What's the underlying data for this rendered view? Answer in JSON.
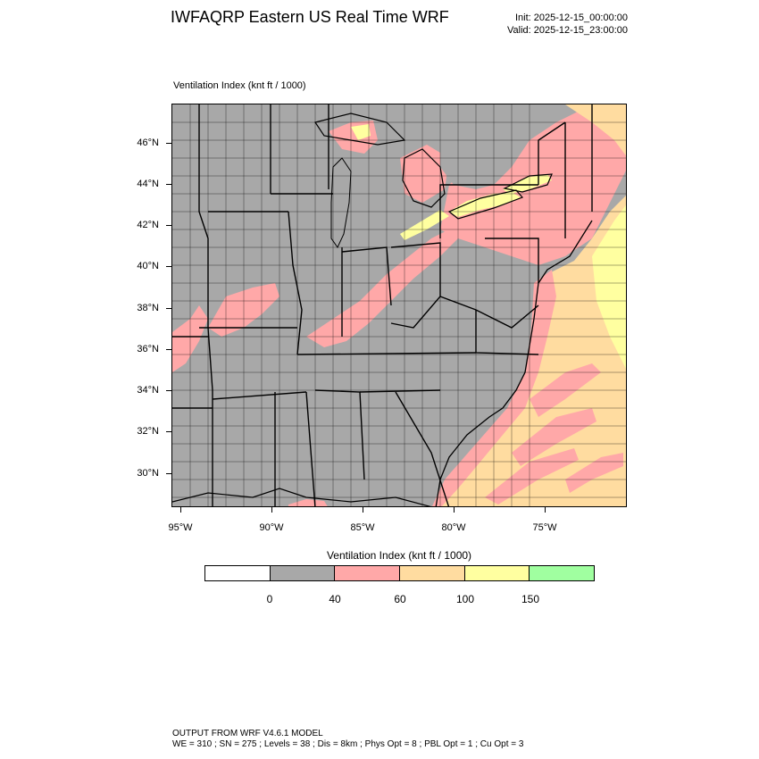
{
  "header": {
    "title": "IWFAQRP Eastern US Real Time WRF",
    "init": "Init: 2025-12-15_00:00:00",
    "valid": "Valid: 2025-12-15_23:00:00"
  },
  "plot": {
    "label": "Ventilation Index   (knt ft / 1000)"
  },
  "map": {
    "lat_labels": [
      "46°N",
      "44°N",
      "42°N",
      "40°N",
      "38°N",
      "36°N",
      "34°N",
      "32°N",
      "30°N"
    ],
    "lon_labels": [
      "95°W",
      "90°W",
      "85°W",
      "80°W",
      "75°W"
    ],
    "colors": {
      "land_low": "#a8a8a8",
      "pink": "#ffa8a8",
      "orange": "#ffdca0",
      "yellow": "#ffffa0",
      "boundary": "#000000"
    }
  },
  "colorbar": {
    "title": "Ventilation Index  (knt ft / 1000)",
    "colors": [
      "#ffffff",
      "#a8a8a8",
      "#ffa8a8",
      "#ffdca0",
      "#ffffa0",
      "#a0ffa0"
    ],
    "ticks": [
      "0",
      "40",
      "60",
      "100",
      "150"
    ]
  },
  "footer": {
    "line1": "OUTPUT FROM WRF V4.6.1 MODEL",
    "line2": "WE = 310 ; SN = 275 ; Levels = 38 ; Dis = 8km ; Phys Opt = 8 ; PBL Opt = 1 ; Cu Opt = 3"
  }
}
